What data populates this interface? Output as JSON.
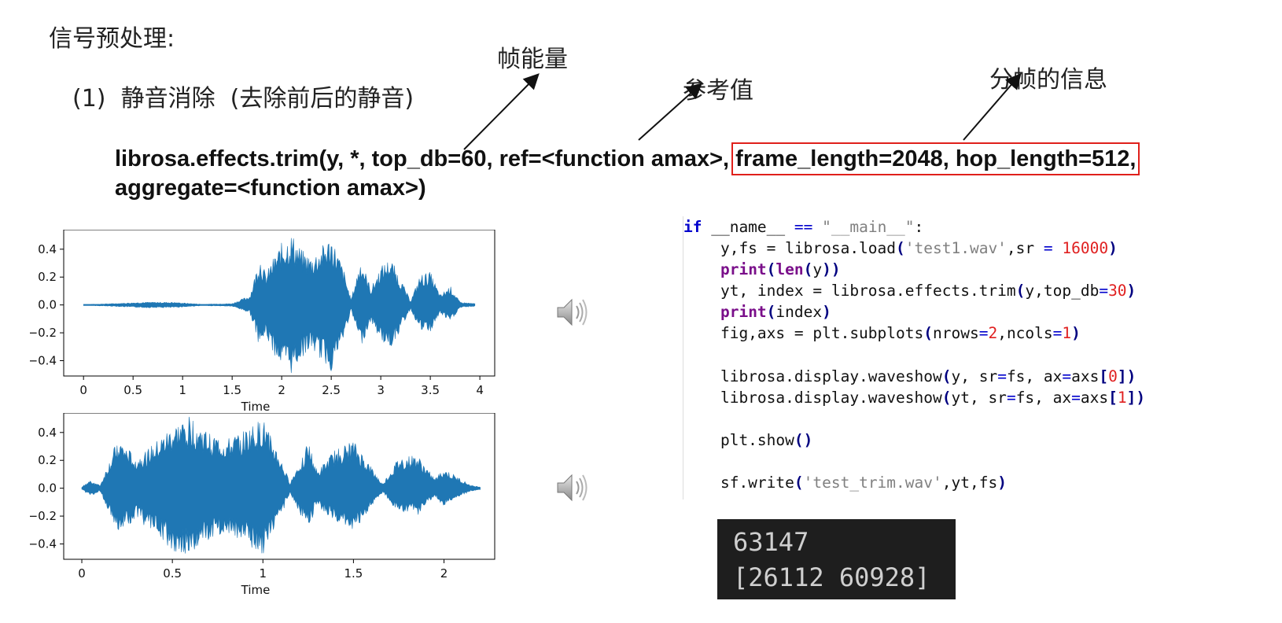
{
  "slide": {
    "title": "信号预处理:",
    "subtitle": "(1)  静音消除  (去除前后的静音)",
    "annotations": {
      "frame_energy": "帧能量",
      "reference": "参考值",
      "frame_info": "分帧的信息"
    },
    "signature": {
      "part1": "librosa.effects.trim(y, *, top_db=60, ref=<function amax>, ",
      "part2_highlight": "frame_length=2048, hop_length=512,",
      "line2": "aggregate=<function amax>)"
    },
    "highlight_color": "#e0201b"
  },
  "code": {
    "lines": [
      [
        {
          "t": "if",
          "c": "kw"
        },
        {
          "t": " __name__ "
        },
        {
          "t": "==",
          "c": "op"
        },
        {
          "t": " "
        },
        {
          "t": "\"__main__\"",
          "c": "str"
        },
        {
          "t": ":"
        }
      ],
      [
        {
          "t": "    y,fs = librosa.load"
        },
        {
          "t": "(",
          "c": "br"
        },
        {
          "t": "'test1.wav'",
          "c": "str"
        },
        {
          "t": ",sr "
        },
        {
          "t": "=",
          "c": "op"
        },
        {
          "t": " "
        },
        {
          "t": "16000",
          "c": "num"
        },
        {
          "t": ")",
          "c": "br"
        }
      ],
      [
        {
          "t": "    "
        },
        {
          "t": "print",
          "c": "fn"
        },
        {
          "t": "(",
          "c": "br"
        },
        {
          "t": "len",
          "c": "fn"
        },
        {
          "t": "(",
          "c": "br"
        },
        {
          "t": "y"
        },
        {
          "t": "))",
          "c": "br"
        }
      ],
      [
        {
          "t": "    yt, index = librosa.effects.trim"
        },
        {
          "t": "(",
          "c": "br"
        },
        {
          "t": "y,top_db"
        },
        {
          "t": "=",
          "c": "op"
        },
        {
          "t": "30",
          "c": "num"
        },
        {
          "t": ")",
          "c": "br"
        }
      ],
      [
        {
          "t": "    "
        },
        {
          "t": "print",
          "c": "fn"
        },
        {
          "t": "(",
          "c": "br"
        },
        {
          "t": "index"
        },
        {
          "t": ")",
          "c": "br"
        }
      ],
      [
        {
          "t": "    fig,axs = plt.subplots"
        },
        {
          "t": "(",
          "c": "br"
        },
        {
          "t": "nrows"
        },
        {
          "t": "=",
          "c": "op"
        },
        {
          "t": "2",
          "c": "num"
        },
        {
          "t": ",ncols"
        },
        {
          "t": "=",
          "c": "op"
        },
        {
          "t": "1",
          "c": "num"
        },
        {
          "t": ")",
          "c": "br"
        }
      ],
      [],
      [
        {
          "t": "    librosa.display.waveshow"
        },
        {
          "t": "(",
          "c": "br"
        },
        {
          "t": "y, sr"
        },
        {
          "t": "=",
          "c": "op"
        },
        {
          "t": "fs, ax"
        },
        {
          "t": "=",
          "c": "op"
        },
        {
          "t": "axs"
        },
        {
          "t": "[",
          "c": "br"
        },
        {
          "t": "0",
          "c": "num"
        },
        {
          "t": "])",
          "c": "br"
        }
      ],
      [
        {
          "t": "    librosa.display.waveshow"
        },
        {
          "t": "(",
          "c": "br"
        },
        {
          "t": "yt, sr"
        },
        {
          "t": "=",
          "c": "op"
        },
        {
          "t": "fs, ax"
        },
        {
          "t": "=",
          "c": "op"
        },
        {
          "t": "axs"
        },
        {
          "t": "[",
          "c": "br"
        },
        {
          "t": "1",
          "c": "num"
        },
        {
          "t": "])",
          "c": "br"
        }
      ],
      [],
      [
        {
          "t": "    plt.show"
        },
        {
          "t": "()",
          "c": "br"
        }
      ],
      [],
      [
        {
          "t": "    sf.write"
        },
        {
          "t": "(",
          "c": "br"
        },
        {
          "t": "'test_trim.wav'",
          "c": "str"
        },
        {
          "t": ",yt,fs"
        },
        {
          "t": ")",
          "c": "br"
        }
      ]
    ]
  },
  "terminal": {
    "line1": "63147",
    "line2": "[26112 60928]"
  },
  "icons": {
    "speaker": "speaker-icon"
  },
  "chart_data": [
    {
      "type": "area",
      "title": "",
      "xlabel": "Time",
      "ylabel": "",
      "xlim": [
        -0.2,
        4.15
      ],
      "ylim": [
        -0.51,
        0.54
      ],
      "xticks": [
        0,
        0.5,
        1,
        1.5,
        2,
        2.5,
        3,
        3.5,
        4
      ],
      "xtick_labels": [
        "0",
        "0.5",
        "1",
        "1.5",
        "2",
        "2.5",
        "3",
        "3.5",
        "4"
      ],
      "yticks": [
        0.4,
        0.2,
        0.0,
        -0.2,
        -0.4
      ],
      "ytick_labels": [
        "0.4",
        "0.2",
        "0.0",
        "−0.2",
        "−0.4"
      ],
      "color": "#1f77b4",
      "series": [
        {
          "x": [
            0,
            0.3,
            0.6,
            0.9,
            1.2,
            1.5,
            1.68,
            1.78,
            1.84,
            1.9,
            2.0,
            2.1,
            2.2,
            2.3,
            2.4,
            2.5,
            2.62,
            2.7,
            2.8,
            2.9,
            3.0,
            3.1,
            3.2,
            3.3,
            3.4,
            3.5,
            3.6,
            3.7,
            3.8,
            3.95
          ],
          "upper": [
            0.003,
            0.01,
            0.02,
            0.02,
            0.005,
            0.01,
            0.07,
            0.36,
            0.22,
            0.32,
            0.45,
            0.52,
            0.4,
            0.35,
            0.42,
            0.5,
            0.27,
            0.04,
            0.34,
            0.12,
            0.28,
            0.34,
            0.19,
            0.03,
            0.22,
            0.24,
            0.07,
            0.14,
            0.02,
            0.01
          ],
          "lower": [
            -0.003,
            -0.01,
            -0.02,
            -0.02,
            -0.005,
            -0.01,
            -0.06,
            -0.31,
            -0.22,
            -0.33,
            -0.45,
            -0.5,
            -0.38,
            -0.32,
            -0.4,
            -0.48,
            -0.26,
            -0.04,
            -0.3,
            -0.12,
            -0.26,
            -0.31,
            -0.18,
            -0.03,
            -0.19,
            -0.2,
            -0.06,
            -0.13,
            -0.02,
            -0.01
          ]
        }
      ]
    },
    {
      "type": "area",
      "title": "",
      "xlabel": "Time",
      "ylabel": "",
      "xlim": [
        -0.1,
        2.28
      ],
      "ylim": [
        -0.51,
        0.54
      ],
      "xticks": [
        0,
        0.5,
        1,
        1.5,
        2
      ],
      "xtick_labels": [
        "0",
        "0.5",
        "1",
        "1.5",
        "2"
      ],
      "yticks": [
        0.4,
        0.2,
        0.0,
        -0.2,
        -0.4
      ],
      "ytick_labels": [
        "0.4",
        "0.2",
        "0.0",
        "−0.2",
        "−0.4"
      ],
      "color": "#1f77b4",
      "series": [
        {
          "x": [
            0,
            0.05,
            0.1,
            0.2,
            0.3,
            0.4,
            0.5,
            0.6,
            0.7,
            0.8,
            0.9,
            1.0,
            1.08,
            1.15,
            1.25,
            1.3,
            1.4,
            1.5,
            1.58,
            1.66,
            1.75,
            1.85,
            1.95,
            2.0,
            2.05,
            2.15,
            2.2
          ],
          "upper": [
            0.01,
            0.06,
            0.02,
            0.36,
            0.22,
            0.32,
            0.45,
            0.52,
            0.4,
            0.35,
            0.42,
            0.5,
            0.27,
            0.04,
            0.34,
            0.12,
            0.28,
            0.34,
            0.19,
            0.03,
            0.22,
            0.24,
            0.07,
            0.14,
            0.1,
            0.02,
            0.01
          ],
          "lower": [
            -0.01,
            -0.06,
            -0.02,
            -0.32,
            -0.22,
            -0.33,
            -0.45,
            -0.5,
            -0.38,
            -0.32,
            -0.4,
            -0.48,
            -0.26,
            -0.04,
            -0.3,
            -0.12,
            -0.26,
            -0.31,
            -0.18,
            -0.03,
            -0.19,
            -0.2,
            -0.06,
            -0.13,
            -0.09,
            -0.02,
            -0.01
          ]
        }
      ]
    }
  ]
}
